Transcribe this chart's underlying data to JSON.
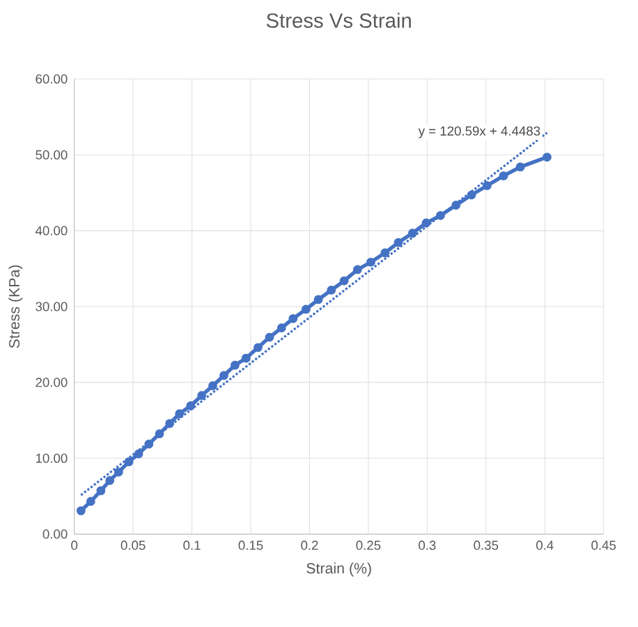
{
  "chart_data": {
    "type": "line",
    "title": "Stress Vs Strain",
    "xlabel": "Strain (%)",
    "ylabel": "Stress (KPa)",
    "xlim": [
      0,
      0.45
    ],
    "xticks": [
      0,
      0.05,
      0.1,
      0.15,
      0.2,
      0.25,
      0.3,
      0.35,
      0.4,
      0.45
    ],
    "ylim": [
      0,
      60
    ],
    "yticks": [
      {
        "value": 0,
        "label": "0.00"
      },
      {
        "value": 10,
        "label": "10.00"
      },
      {
        "value": 20,
        "label": "20.00"
      },
      {
        "value": 30,
        "label": "30.00"
      },
      {
        "value": 40,
        "label": "40.00"
      },
      {
        "value": 50,
        "label": "50.00"
      },
      {
        "value": 60,
        "label": "60.00"
      }
    ],
    "grid": true,
    "marker": "circle",
    "line_style": "solid",
    "annotations": [
      "y = 120.59x + 4.4483"
    ],
    "series": [
      {
        "color": "#4472c4",
        "x": [
          0.0057,
          0.014,
          0.0226,
          0.0302,
          0.0377,
          0.0464,
          0.0547,
          0.0634,
          0.0724,
          0.0811,
          0.0894,
          0.0989,
          0.1083,
          0.1177,
          0.1272,
          0.1366,
          0.146,
          0.1562,
          0.166,
          0.1762,
          0.186,
          0.197,
          0.2075,
          0.2185,
          0.2294,
          0.2408,
          0.2521,
          0.2642,
          0.2755,
          0.2875,
          0.2992,
          0.3113,
          0.3245,
          0.3377,
          0.3509,
          0.3649,
          0.3792,
          0.4019
        ],
        "values": [
          3.08,
          4.31,
          5.72,
          7.07,
          8.18,
          9.53,
          10.58,
          11.87,
          13.22,
          14.58,
          15.87,
          16.91,
          18.27,
          19.56,
          20.91,
          22.26,
          23.19,
          24.6,
          25.95,
          27.18,
          28.41,
          29.64,
          30.93,
          32.16,
          33.39,
          34.87,
          35.85,
          37.08,
          38.44,
          39.67,
          41.02,
          42.0,
          43.36,
          44.71,
          45.94,
          47.23,
          48.4,
          49.69
        ]
      },
      {
        "type": "line",
        "color": "#4472c4",
        "marker": "none",
        "line_style": "dotted",
        "x": [
          0.0057,
          0.4019
        ],
        "values": [
          5.14,
          52.91
        ]
      }
    ]
  }
}
